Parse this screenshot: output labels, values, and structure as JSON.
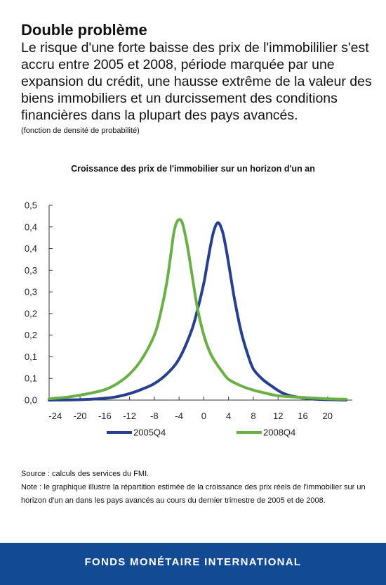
{
  "header": {
    "title": "Double problème",
    "subtitle": "Le risque d'une forte baisse des prix de l'immobililier s'est accru entre 2005 et 2008, période marquée par une expansion du crédit, une hausse extrême de la valeur des biens immobiliers et un durcissement des conditions financières dans la plupart des pays avancés.",
    "unit_note": "(fonction de densité de probabilité)"
  },
  "chart_data": {
    "type": "line",
    "title": "Croissance des prix de l'immobilier sur un horizon d'un an",
    "xlabel": "",
    "ylabel": "",
    "xlim": [
      -25,
      24
    ],
    "ylim": [
      0,
      0.45
    ],
    "x_ticks": [
      -24,
      -20,
      -16,
      -12,
      -8,
      -4,
      0,
      4,
      8,
      12,
      16,
      20
    ],
    "y_ticks": [
      0,
      0.05,
      0.1,
      0.15,
      0.2,
      0.25,
      0.3,
      0.35,
      0.4,
      0.45
    ],
    "y_tick_labels": [
      "0,0",
      "0,1",
      "0,1",
      "0,2",
      "0,2",
      "0,3",
      "0,3",
      "0,4",
      "0,4",
      "0,5"
    ],
    "grid": false,
    "legend_position": "bottom",
    "series": [
      {
        "name": "2005Q4",
        "color": "#26408f",
        "points": [
          [
            -25,
            0.0
          ],
          [
            -20,
            0.001
          ],
          [
            -16,
            0.004
          ],
          [
            -14,
            0.008
          ],
          [
            -12,
            0.015
          ],
          [
            -10,
            0.025
          ],
          [
            -8,
            0.038
          ],
          [
            -6,
            0.06
          ],
          [
            -4,
            0.095
          ],
          [
            -2,
            0.16
          ],
          [
            -1,
            0.21
          ],
          [
            0,
            0.27
          ],
          [
            0.5,
            0.31
          ],
          [
            1,
            0.35
          ],
          [
            1.6,
            0.39
          ],
          [
            2.3,
            0.41
          ],
          [
            3,
            0.39
          ],
          [
            3.6,
            0.35
          ],
          [
            4.3,
            0.29
          ],
          [
            5,
            0.23
          ],
          [
            6,
            0.16
          ],
          [
            7,
            0.11
          ],
          [
            8,
            0.072
          ],
          [
            9.5,
            0.048
          ],
          [
            11,
            0.032
          ],
          [
            12.5,
            0.018
          ],
          [
            14,
            0.01
          ],
          [
            16,
            0.005
          ],
          [
            18,
            0.002
          ],
          [
            20,
            0.001
          ],
          [
            23,
            0.0
          ]
        ]
      },
      {
        "name": "2008Q4",
        "color": "#6ab045",
        "points": [
          [
            -25,
            0.003
          ],
          [
            -22,
            0.007
          ],
          [
            -19,
            0.014
          ],
          [
            -16,
            0.024
          ],
          [
            -14,
            0.038
          ],
          [
            -12,
            0.06
          ],
          [
            -10,
            0.095
          ],
          [
            -8,
            0.15
          ],
          [
            -7,
            0.2
          ],
          [
            -6,
            0.27
          ],
          [
            -5.3,
            0.34
          ],
          [
            -4.8,
            0.39
          ],
          [
            -4.2,
            0.415
          ],
          [
            -3.5,
            0.41
          ],
          [
            -2.7,
            0.36
          ],
          [
            -1.8,
            0.28
          ],
          [
            -1,
            0.21
          ],
          [
            0,
            0.15
          ],
          [
            1,
            0.11
          ],
          [
            2,
            0.085
          ],
          [
            3,
            0.065
          ],
          [
            4,
            0.048
          ],
          [
            6,
            0.033
          ],
          [
            8,
            0.023
          ],
          [
            10,
            0.016
          ],
          [
            12,
            0.01
          ],
          [
            16,
            0.006
          ],
          [
            20,
            0.003
          ],
          [
            23,
            0.002
          ]
        ]
      }
    ]
  },
  "footer": {
    "source": "Source : calculs des services du FMI.",
    "note": "Note : le graphique illustre la répartition estimée de la croissance des prix réels de l'immobilier sur un horizon d'un an dans les pays avancés au cours du dernier trimestre de 2005 et de 2008.",
    "brand": "FONDS MONÉTAIRE INTERNATIONAL"
  }
}
